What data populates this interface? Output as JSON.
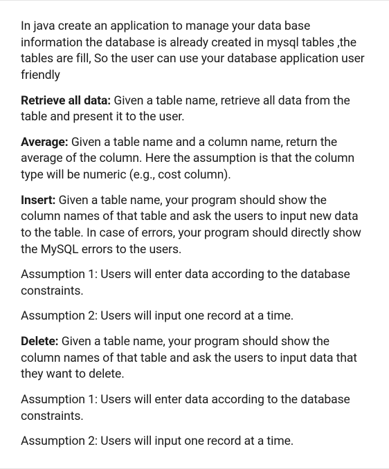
{
  "paragraphs": {
    "intro": "In java create an application to manage your data base information the database is already created in mysql tables ,the tables are fill, So the user can use your database application user friendly",
    "retrieve_label": "Retrieve all data:",
    "retrieve_text": " Given a table name, retrieve all data from the table and present it to the user.",
    "average_label": "Average:",
    "average_text": " Given a table name and a column name, return the average of the column. Here the assumption is that the column type will be numeric (e.g., cost column).",
    "insert_label": "Insert:",
    "insert_text": " Given a table name, your program should show the column names of that table and ask the users to input new data to the table. In case of errors, your program should directly show the MySQL errors to the users.",
    "assumption1a": "Assumption 1: Users will enter data according to the database constraints.",
    "assumption2a": "Assumption 2: Users will input one record at a time.",
    "delete_label": "Delete:",
    "delete_text": " Given a table name, your program should show the column names of that table and ask the users to input data that they want to delete.",
    "assumption1b": "Assumption 1: Users will enter data according to the database constraints.",
    "assumption2b": "Assumption 2: Users will input one record at a time."
  },
  "styles": {
    "text_color": "#1a1a1a",
    "background_color": "#ffffff",
    "border_color": "#e5e5e5",
    "font_size": 17.5,
    "line_height": 1.35
  }
}
